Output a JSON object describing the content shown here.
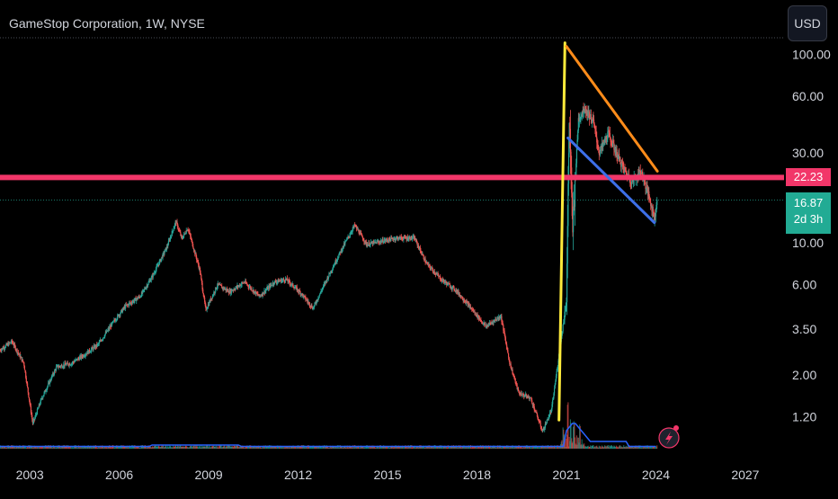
{
  "header": {
    "title": "GameStop Corporation, 1W, NYSE"
  },
  "toolbar": {
    "currency": "USD"
  },
  "price_labels": {
    "level": "22.23",
    "last": "16.87",
    "countdown": "2d 3h"
  },
  "colors": {
    "up": "#26a69a",
    "down": "#ef5350",
    "level_line": "#f23669",
    "last_label": "#22ab94",
    "wedge_upper": "#ff8c1a",
    "wedge_lower": "#3d6fe8",
    "impulse": "#ffeb3b",
    "volume_ma": "#2962ff"
  },
  "chart_data": {
    "type": "candlestick",
    "title": "GameStop Corporation, 1W, NYSE",
    "scale": "log",
    "currency": "USD",
    "y_ticks": [
      1.2,
      2.0,
      3.5,
      6.0,
      10.0,
      30.0,
      60.0,
      100.0
    ],
    "y_tick_labels": [
      "1.20",
      "2.00",
      "3.50",
      "6.00",
      "10.00",
      "30.00",
      "60.00",
      "100.00"
    ],
    "x_ticks": [
      "2003",
      "2006",
      "2009",
      "2012",
      "2015",
      "2018",
      "2021",
      "2024",
      "2027"
    ],
    "x_range": [
      2002.0,
      2028.3
    ],
    "y_range": [
      0.82,
      125
    ],
    "price_path": [
      [
        2002.0,
        2.7
      ],
      [
        2002.4,
        3.0
      ],
      [
        2002.8,
        2.3
      ],
      [
        2003.1,
        1.1
      ],
      [
        2003.4,
        1.5
      ],
      [
        2003.9,
        2.2
      ],
      [
        2004.4,
        2.3
      ],
      [
        2004.9,
        2.6
      ],
      [
        2005.3,
        2.9
      ],
      [
        2005.8,
        3.8
      ],
      [
        2006.2,
        4.6
      ],
      [
        2006.7,
        5.2
      ],
      [
        2007.1,
        6.6
      ],
      [
        2007.6,
        9.5
      ],
      [
        2007.9,
        13.0
      ],
      [
        2008.1,
        10.5
      ],
      [
        2008.3,
        12.0
      ],
      [
        2008.7,
        7.2
      ],
      [
        2008.9,
        4.4
      ],
      [
        2009.3,
        6.0
      ],
      [
        2009.7,
        5.5
      ],
      [
        2010.2,
        6.2
      ],
      [
        2010.7,
        5.2
      ],
      [
        2011.2,
        6.2
      ],
      [
        2011.6,
        6.4
      ],
      [
        2012.1,
        5.4
      ],
      [
        2012.5,
        4.5
      ],
      [
        2013.0,
        6.6
      ],
      [
        2013.5,
        9.5
      ],
      [
        2013.9,
        12.4
      ],
      [
        2014.3,
        9.8
      ],
      [
        2014.8,
        10.2
      ],
      [
        2015.3,
        10.6
      ],
      [
        2015.9,
        10.6
      ],
      [
        2016.3,
        7.8
      ],
      [
        2016.8,
        6.4
      ],
      [
        2017.3,
        5.6
      ],
      [
        2017.8,
        4.5
      ],
      [
        2018.3,
        3.6
      ],
      [
        2018.8,
        4.1
      ],
      [
        2019.1,
        2.3
      ],
      [
        2019.4,
        1.6
      ],
      [
        2019.8,
        1.5
      ],
      [
        2020.2,
        1.0
      ],
      [
        2020.5,
        1.3
      ],
      [
        2020.8,
        2.9
      ],
      [
        2021.0,
        5.0
      ],
      [
        2021.1,
        50
      ],
      [
        2021.2,
        11
      ],
      [
        2021.4,
        45
      ],
      [
        2021.6,
        52
      ],
      [
        2021.9,
        44
      ],
      [
        2022.1,
        30
      ],
      [
        2022.4,
        38
      ],
      [
        2022.6,
        32
      ],
      [
        2022.9,
        25
      ],
      [
        2023.2,
        21
      ],
      [
        2023.5,
        24
      ],
      [
        2023.8,
        17
      ],
      [
        2023.95,
        13.5
      ],
      [
        2024.05,
        16.87
      ]
    ],
    "volume_spikes": [
      [
        2021.05,
        1.0
      ],
      [
        2021.15,
        0.55
      ],
      [
        2021.25,
        0.35
      ],
      [
        2021.45,
        0.25
      ],
      [
        2020.9,
        0.18
      ]
    ],
    "annotations": {
      "horizontal_level": 22.23,
      "last_price": 16.87,
      "impulse_line": {
        "from": [
          2020.75,
          1.15
        ],
        "to": [
          2020.95,
          115
        ]
      },
      "wedge_upper": {
        "from": [
          2021.0,
          110
        ],
        "to": [
          2024.05,
          24
        ]
      },
      "wedge_lower": {
        "from": [
          2021.05,
          36
        ],
        "to": [
          2023.95,
          12.8
        ]
      }
    }
  }
}
